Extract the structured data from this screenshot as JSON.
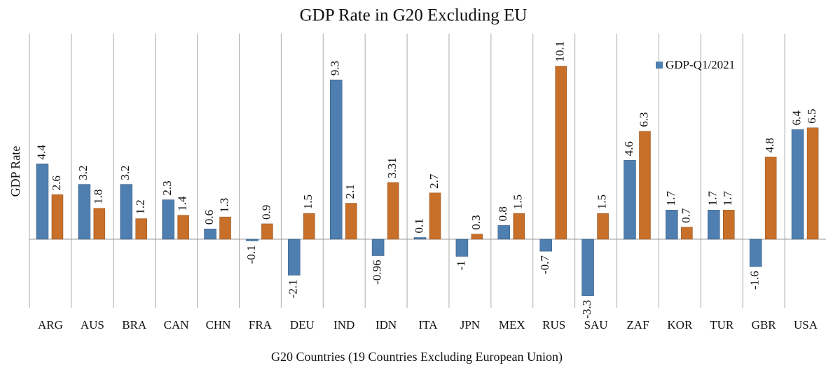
{
  "chart_data": {
    "type": "bar",
    "title": "GDP Rate in G20 Excluding EU",
    "x_label": "G20 Countries (19 Countries Excluding European Union)",
    "y_label": "GDP Rate",
    "categories": [
      "ARG",
      "AUS",
      "BRA",
      "CAN",
      "CHN",
      "FRA",
      "DEU",
      "IND",
      "IDN",
      "ITA",
      "JPN",
      "MEX",
      "RUS",
      "SAU",
      "ZAF",
      "KOR",
      "TUR",
      "GBR",
      "USA"
    ],
    "series": [
      {
        "name": "GDP-Q1/2021",
        "color": "#4f7fb0",
        "values": [
          4.4,
          3.2,
          3.2,
          2.3,
          0.6,
          -0.1,
          -2.1,
          9.3,
          -0.96,
          0.1,
          -1,
          0.8,
          -0.7,
          -3.3,
          4.6,
          1.7,
          1.7,
          -1.6,
          6.4
        ]
      },
      {
        "color": "#c8702a",
        "values": [
          2.6,
          1.8,
          1.2,
          1.4,
          1.3,
          0.9,
          1.5,
          2.1,
          3.31,
          2.7,
          0.3,
          1.5,
          10.1,
          1.5,
          6.3,
          0.7,
          1.7,
          4.8,
          6.5
        ]
      }
    ],
    "ylim": [
      -4,
      12
    ],
    "legend": "upper right"
  }
}
